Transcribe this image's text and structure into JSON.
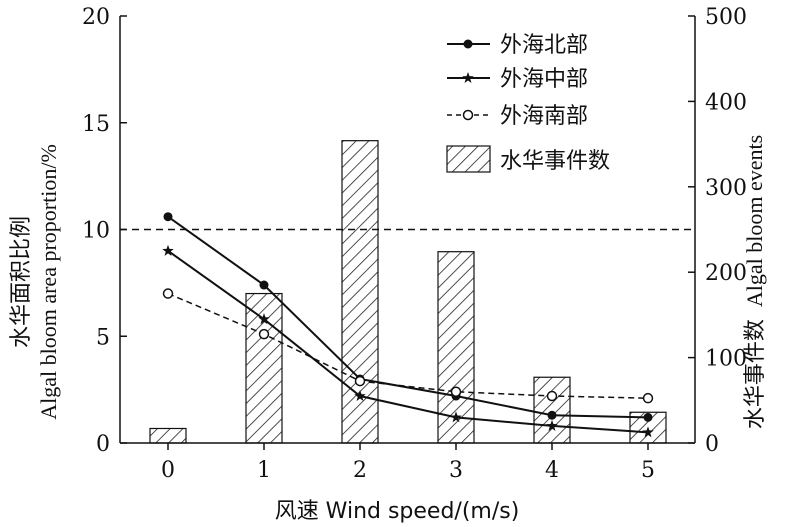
{
  "chart_data": {
    "type": "bar+line",
    "categories": [
      "0",
      "1",
      "2",
      "3",
      "4",
      "5"
    ],
    "x": [
      0,
      1,
      2,
      3,
      4,
      5
    ],
    "xlabel": "风速 Wind speed/(m/s)",
    "ylabel_left_zh": "水华面积比例",
    "ylabel_left_en": "Algal bloom area proportion/%",
    "ylabel_right_zh": "水华事件数",
    "ylabel_right_en": "Algal bloom events",
    "ylim_left": [
      0,
      20
    ],
    "ylim_right": [
      0,
      500
    ],
    "yticks_left": [
      "0",
      "5",
      "10",
      "15",
      "20"
    ],
    "yticks_right": [
      "0",
      "100",
      "200",
      "300",
      "400",
      "500"
    ],
    "reference_line": {
      "y": 10,
      "style": "dashed"
    },
    "bars": {
      "name": "水华事件数",
      "axis": "right",
      "values": [
        17,
        175,
        354,
        224,
        77,
        36
      ]
    },
    "series": [
      {
        "name": "外海北部",
        "axis": "left",
        "marker": "filled-circle",
        "line": "solid",
        "values": [
          10.6,
          7.4,
          3.0,
          2.2,
          1.3,
          1.2
        ]
      },
      {
        "name": "外海中部",
        "axis": "left",
        "marker": "star",
        "line": "solid",
        "values": [
          9.0,
          5.8,
          2.2,
          1.2,
          0.8,
          0.5
        ]
      },
      {
        "name": "外海南部",
        "axis": "left",
        "marker": "open-circle",
        "line": "dashed",
        "values": [
          7.0,
          5.1,
          2.9,
          2.4,
          2.2,
          2.1
        ]
      }
    ],
    "legend": [
      "外海北部",
      "外海中部",
      "外海南部",
      "水华事件数"
    ],
    "legend_position": "top-right",
    "grid": false
  }
}
